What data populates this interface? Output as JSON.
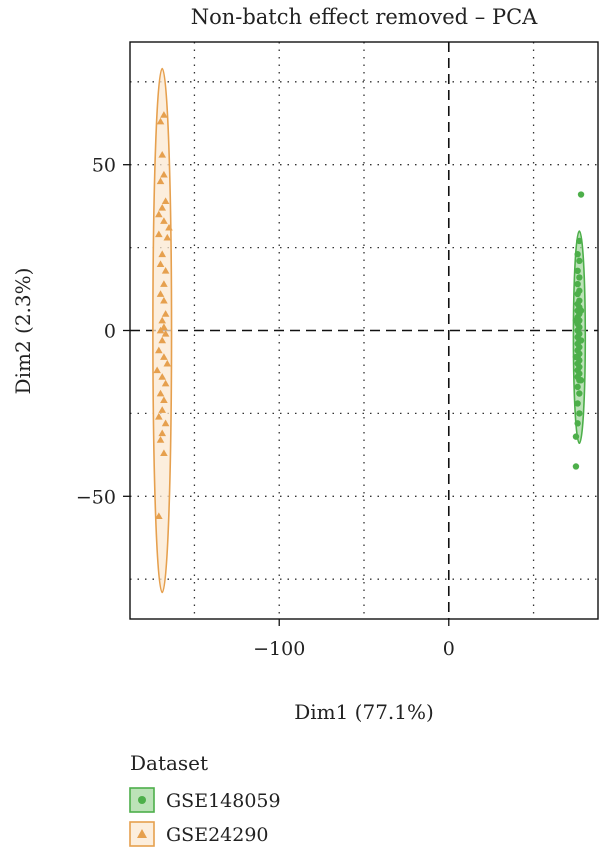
{
  "chart_data": {
    "type": "scatter",
    "title": "Non-batch effect removed – PCA",
    "xlabel": "Dim1 (77.1%)",
    "ylabel": "Dim2 (2.3%)",
    "xlim": [
      -188,
      88
    ],
    "ylim": [
      -87,
      87
    ],
    "x_ticks": [
      -100,
      0
    ],
    "x_tick_labels": [
      "−100",
      "0"
    ],
    "y_ticks": [
      -50,
      0,
      50
    ],
    "y_tick_labels": [
      "−50",
      "0",
      "50"
    ],
    "x_dotted_grid": [
      -150,
      -50,
      50
    ],
    "y_dotted_grid": [
      -75,
      -25,
      25,
      75
    ],
    "grid": "dotted",
    "reference_lines": {
      "x": 0,
      "y": 0,
      "style": "dashed"
    },
    "legend": {
      "title": "Dataset",
      "placement": "bottom-left",
      "entries": [
        {
          "label": "GSE148059",
          "marker": "circle",
          "color": "#4daf4a"
        },
        {
          "label": "GSE24290",
          "marker": "triangle",
          "color": "#e6a04e"
        }
      ]
    },
    "series": [
      {
        "name": "GSE148059",
        "marker": "circle",
        "color": "#4daf4a",
        "ellipse": {
          "cx": 77,
          "cy": -2,
          "rx": 3.5,
          "ry": 32,
          "fill": "#a6d8a0",
          "stroke": "#4daf4a"
        },
        "points": [
          [
            78,
            41
          ],
          [
            77,
            27
          ],
          [
            76,
            23
          ],
          [
            77,
            21
          ],
          [
            76,
            18
          ],
          [
            77,
            16
          ],
          [
            76,
            14
          ],
          [
            77,
            12
          ],
          [
            76,
            11
          ],
          [
            77,
            9
          ],
          [
            76,
            8
          ],
          [
            77,
            7
          ],
          [
            76,
            6
          ],
          [
            77,
            5
          ],
          [
            76,
            4
          ],
          [
            77,
            3
          ],
          [
            76,
            2
          ],
          [
            77,
            1
          ],
          [
            76,
            0
          ],
          [
            77,
            -1
          ],
          [
            76,
            -2
          ],
          [
            77,
            -3
          ],
          [
            76,
            -4
          ],
          [
            77,
            -5
          ],
          [
            76,
            -6
          ],
          [
            77,
            -7
          ],
          [
            76,
            -8
          ],
          [
            77,
            -9
          ],
          [
            76,
            -10
          ],
          [
            77,
            -11
          ],
          [
            76,
            -12
          ],
          [
            77,
            -13
          ],
          [
            76,
            -14
          ],
          [
            77,
            -15
          ],
          [
            76,
            -17
          ],
          [
            77,
            -19
          ],
          [
            76,
            -22
          ],
          [
            77,
            -25
          ],
          [
            76,
            -28
          ],
          [
            75,
            -32
          ],
          [
            75,
            -41
          ],
          [
            78,
            -3
          ],
          [
            78,
            6
          ],
          [
            75,
            -8
          ],
          [
            78,
            -15
          ],
          [
            75,
            3
          ]
        ]
      },
      {
        "name": "GSE24290",
        "marker": "triangle",
        "color": "#e6a04e",
        "ellipse": {
          "cx": -169,
          "cy": 0,
          "rx": 5.5,
          "ry": 79,
          "fill": "#fbe8d2",
          "stroke": "#e6a04e"
        },
        "points": [
          [
            -168,
            65
          ],
          [
            -170,
            63
          ],
          [
            -169,
            53
          ],
          [
            -168,
            47
          ],
          [
            -170,
            45
          ],
          [
            -167,
            39
          ],
          [
            -169,
            37
          ],
          [
            -171,
            35
          ],
          [
            -168,
            33
          ],
          [
            -165,
            31
          ],
          [
            -171,
            29
          ],
          [
            -166,
            28
          ],
          [
            -169,
            23
          ],
          [
            -170,
            20
          ],
          [
            -167,
            18
          ],
          [
            -168,
            14
          ],
          [
            -170,
            11
          ],
          [
            -168,
            9
          ],
          [
            -167,
            5
          ],
          [
            -169,
            3
          ],
          [
            -168,
            1
          ],
          [
            -170,
            0
          ],
          [
            -167,
            -1
          ],
          [
            -169,
            -3
          ],
          [
            -171,
            -6
          ],
          [
            -168,
            -8
          ],
          [
            -166,
            -10
          ],
          [
            -172,
            -12
          ],
          [
            -169,
            -14
          ],
          [
            -167,
            -16
          ],
          [
            -170,
            -19
          ],
          [
            -168,
            -21
          ],
          [
            -169,
            -24
          ],
          [
            -171,
            -26
          ],
          [
            -167,
            -28
          ],
          [
            -169,
            -31
          ],
          [
            -170,
            -33
          ],
          [
            -168,
            -37
          ],
          [
            -171,
            -56
          ]
        ]
      }
    ]
  }
}
